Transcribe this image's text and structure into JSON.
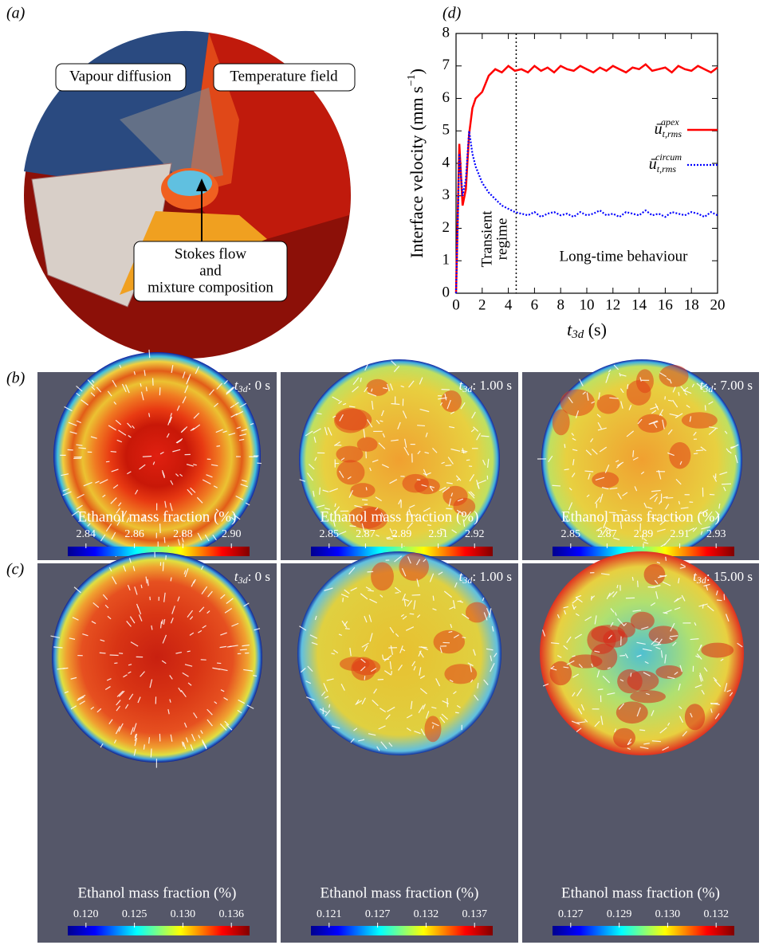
{
  "panel_a": {
    "label": "(a)",
    "callouts": [
      "Vapour diffusion",
      "Temperature field",
      "Stokes flow",
      "and",
      "mixture composition"
    ]
  },
  "chart_data": {
    "type": "line",
    "panel_label": "(d)",
    "ylabel": "Interface velocity (mm s",
    "ylabel_sup": "−1",
    "ylabel_end": ")",
    "xlabel_symbol": "t",
    "xlabel_sub": "3d",
    "xlabel_unit": " (s)",
    "x": [
      0,
      0.25,
      0.5,
      0.75,
      1,
      1.25,
      1.5,
      2,
      2.5,
      3,
      3.5,
      4,
      4.5,
      5,
      5.5,
      6,
      6.5,
      7,
      7.5,
      8,
      8.5,
      9,
      9.5,
      10,
      10.5,
      11,
      11.5,
      12,
      12.5,
      13,
      13.5,
      14,
      14.5,
      15,
      15.5,
      16,
      16.5,
      17,
      17.5,
      18,
      18.5,
      19,
      19.5,
      20
    ],
    "series": [
      {
        "name": "ū",
        "sub": "t,rms",
        "sup": "apex",
        "color": "#ff0000",
        "dash": "solid",
        "values": [
          0,
          4.6,
          2.7,
          3.2,
          4.9,
          5.7,
          6.0,
          6.2,
          6.7,
          6.9,
          6.8,
          7.0,
          6.85,
          6.9,
          6.8,
          7.0,
          6.85,
          6.95,
          6.8,
          7.0,
          6.9,
          6.85,
          7.0,
          6.9,
          6.8,
          6.95,
          6.85,
          7.0,
          6.9,
          6.8,
          6.95,
          6.9,
          7.05,
          6.85,
          6.9,
          6.95,
          6.8,
          7.0,
          6.9,
          6.85,
          7.0,
          6.9,
          6.8,
          6.95
        ]
      },
      {
        "name": "ū",
        "sub": "t,rms",
        "sup": "circum",
        "color": "#0000ff",
        "dash": "dotted",
        "values": [
          0,
          4.3,
          3.0,
          3.5,
          5.0,
          4.3,
          3.9,
          3.4,
          3.1,
          2.9,
          2.7,
          2.6,
          2.5,
          2.45,
          2.4,
          2.5,
          2.35,
          2.45,
          2.5,
          2.4,
          2.45,
          2.35,
          2.5,
          2.4,
          2.45,
          2.55,
          2.4,
          2.45,
          2.35,
          2.5,
          2.45,
          2.4,
          2.55,
          2.4,
          2.45,
          2.35,
          2.5,
          2.45,
          2.4,
          2.5,
          2.45,
          2.35,
          2.5,
          2.4
        ]
      }
    ],
    "xlim": [
      0,
      20
    ],
    "ylim": [
      0,
      8
    ],
    "xticks": [
      0,
      2,
      4,
      6,
      8,
      10,
      12,
      14,
      16,
      18,
      20
    ],
    "yticks": [
      0,
      1,
      2,
      3,
      4,
      5,
      6,
      7,
      8
    ],
    "grid": false,
    "legend": "right",
    "vline_x": 4.6,
    "annotations": [
      "Transient",
      "regime",
      "Long-time behaviour"
    ]
  },
  "panel_b": {
    "label": "(b)",
    "images": [
      {
        "time_symbol": "t",
        "time_subscript": "3d",
        "time_value": ": 0 s",
        "colorbar_title": "Ethanol mass fraction (%)",
        "colorbar_ticks": [
          "2.84",
          "2.86",
          "2.88",
          "2.90"
        ]
      },
      {
        "time_symbol": "t",
        "time_subscript": "3d",
        "time_value": ": 1.00 s",
        "colorbar_title": "Ethanol mass fraction (%)",
        "colorbar_ticks": [
          "2.85",
          "2.87",
          "2.89",
          "2.91",
          "2.92"
        ]
      },
      {
        "time_symbol": "t",
        "time_subscript": "3d",
        "time_value": ": 7.00 s",
        "colorbar_title": "Ethanol mass fraction (%)",
        "colorbar_ticks": [
          "2.85",
          "2.87",
          "2.89",
          "2.91",
          "2.93"
        ]
      }
    ]
  },
  "panel_c": {
    "label": "(c)",
    "images": [
      {
        "time_symbol": "t",
        "time_subscript": "3d",
        "time_value": ": 0 s",
        "colorbar_title": "Ethanol mass fraction (%)",
        "colorbar_ticks": [
          "0.120",
          "0.125",
          "0.130",
          "0.136"
        ]
      },
      {
        "time_symbol": "t",
        "time_subscript": "3d",
        "time_value": ": 1.00 s",
        "colorbar_title": "Ethanol mass fraction (%)",
        "colorbar_ticks": [
          "0.121",
          "0.127",
          "0.132",
          "0.137"
        ]
      },
      {
        "time_symbol": "t",
        "time_subscript": "3d",
        "time_value": ": 15.00 s",
        "colorbar_title": "Ethanol mass fraction (%)",
        "colorbar_ticks": [
          "0.127",
          "0.129",
          "0.130",
          "0.132"
        ]
      }
    ]
  }
}
